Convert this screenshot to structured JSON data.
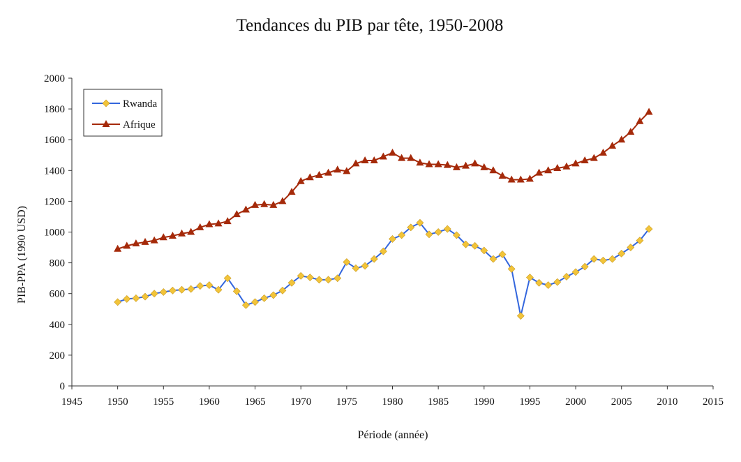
{
  "chart_data": {
    "type": "line",
    "title": "Tendances du PIB par tête, 1950-2008",
    "xlabel": "Période (année)",
    "ylabel": "PIB-PPA  (1990 USD)",
    "x": [
      1950,
      1951,
      1952,
      1953,
      1954,
      1955,
      1956,
      1957,
      1958,
      1959,
      1960,
      1961,
      1962,
      1963,
      1964,
      1965,
      1966,
      1967,
      1968,
      1969,
      1970,
      1971,
      1972,
      1973,
      1974,
      1975,
      1976,
      1977,
      1978,
      1979,
      1980,
      1981,
      1982,
      1983,
      1984,
      1985,
      1986,
      1987,
      1988,
      1989,
      1990,
      1991,
      1992,
      1993,
      1994,
      1995,
      1996,
      1997,
      1998,
      1999,
      2000,
      2001,
      2002,
      2003,
      2004,
      2005,
      2006,
      2007,
      2008
    ],
    "series": [
      {
        "name": "Rwanda",
        "color": "#3366dd",
        "marker": "diamond",
        "marker_color": "#f2c43a",
        "values": [
          545,
          565,
          570,
          580,
          600,
          610,
          620,
          625,
          630,
          650,
          655,
          625,
          700,
          615,
          525,
          545,
          570,
          590,
          620,
          670,
          715,
          705,
          690,
          690,
          700,
          805,
          765,
          780,
          825,
          875,
          955,
          980,
          1030,
          1060,
          985,
          1000,
          1020,
          980,
          920,
          910,
          880,
          825,
          855,
          760,
          455,
          705,
          670,
          655,
          675,
          710,
          740,
          775,
          825,
          815,
          825,
          860,
          900,
          945,
          1020
        ]
      },
      {
        "name": "Afrique",
        "color": "#a52a0a",
        "marker": "triangle",
        "marker_color": "#a52a0a",
        "values": [
          890,
          910,
          925,
          935,
          945,
          965,
          975,
          990,
          1000,
          1030,
          1050,
          1055,
          1070,
          1115,
          1145,
          1175,
          1180,
          1175,
          1200,
          1260,
          1330,
          1355,
          1370,
          1385,
          1405,
          1395,
          1445,
          1465,
          1465,
          1490,
          1515,
          1480,
          1480,
          1450,
          1440,
          1440,
          1435,
          1420,
          1430,
          1445,
          1420,
          1400,
          1365,
          1340,
          1340,
          1345,
          1385,
          1400,
          1415,
          1425,
          1445,
          1465,
          1480,
          1515,
          1560,
          1600,
          1650,
          1720,
          1780
        ]
      }
    ],
    "xlim": [
      1945,
      2015
    ],
    "xticks": [
      1945,
      1950,
      1955,
      1960,
      1965,
      1970,
      1975,
      1980,
      1985,
      1990,
      1995,
      2000,
      2005,
      2010,
      2015
    ],
    "ylim": [
      0,
      2000
    ],
    "yticks": [
      0,
      200,
      400,
      600,
      800,
      1000,
      1200,
      1400,
      1600,
      1800,
      2000
    ],
    "grid": false,
    "legend": "upper left"
  }
}
